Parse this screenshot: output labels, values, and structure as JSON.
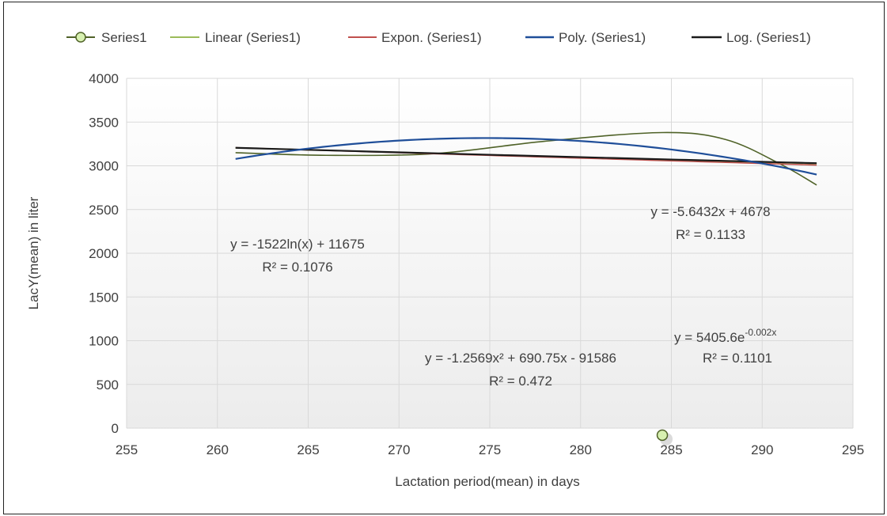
{
  "chart_data": {
    "type": "scatter",
    "xlabel": "Lactation period(mean) in days",
    "ylabel": "LacY(mean) in liter",
    "xlim": [
      255,
      295
    ],
    "ylim": [
      0,
      4000
    ],
    "xticks": [
      "255",
      "260",
      "265",
      "270",
      "275",
      "280",
      "285",
      "290",
      "295"
    ],
    "yticks": [
      "0",
      "500",
      "1000",
      "1500",
      "2000",
      "2500",
      "3000",
      "3500",
      "4000"
    ],
    "grid": true,
    "legend_position": "top",
    "series": [
      {
        "name": "Series1",
        "kind": "smoothed-line-markers",
        "color": "#4f6228",
        "marker_fill": "#d7f0b0",
        "x": [
          261,
          266,
          272,
          278,
          284.5,
          288,
          291,
          293
        ],
        "y": [
          3150,
          3120,
          3140,
          3280,
          3380,
          3300,
          3020,
          2780
        ]
      },
      {
        "name": "Linear (Series1)",
        "kind": "trendline",
        "color": "#9bbb59",
        "coefficients": {
          "slope": -5.6432,
          "intercept": 4678
        },
        "x_range": [
          261,
          293
        ]
      },
      {
        "name": "Expon. (Series1)",
        "kind": "trendline",
        "color": "#c0504d",
        "coefficients": {
          "a": 5405.6,
          "b": -0.002
        },
        "x_range": [
          261,
          293
        ]
      },
      {
        "name": "Poly. (Series1)",
        "kind": "trendline",
        "color": "#1f4e99",
        "coefficients": {
          "a": -1.2569,
          "b": 690.75,
          "c": -91586
        },
        "x_range": [
          261,
          293
        ]
      },
      {
        "name": "Log. (Series1)",
        "kind": "trendline",
        "color": "#1a1a1a",
        "coefficients": {
          "a": -1522,
          "b": 11675
        },
        "x_range": [
          261,
          293
        ]
      }
    ],
    "highlighted_point": {
      "x": 284.5,
      "y": -80
    },
    "annotations": [
      {
        "id": "linear",
        "line1": "y = -5.6432x + 4678",
        "line2": "R² = 0.1133"
      },
      {
        "id": "log",
        "line1": "y = -1522ln(x) + 11675",
        "line2": "R² = 0.1076"
      },
      {
        "id": "poly",
        "line1": "y = -1.2569x² + 690.75x - 91586",
        "line2": "R² = 0.472"
      },
      {
        "id": "expon",
        "line1_base": "y = 5405.6e",
        "line1_exp": "-0.002x",
        "line2": "R² = 0.1101"
      }
    ]
  }
}
